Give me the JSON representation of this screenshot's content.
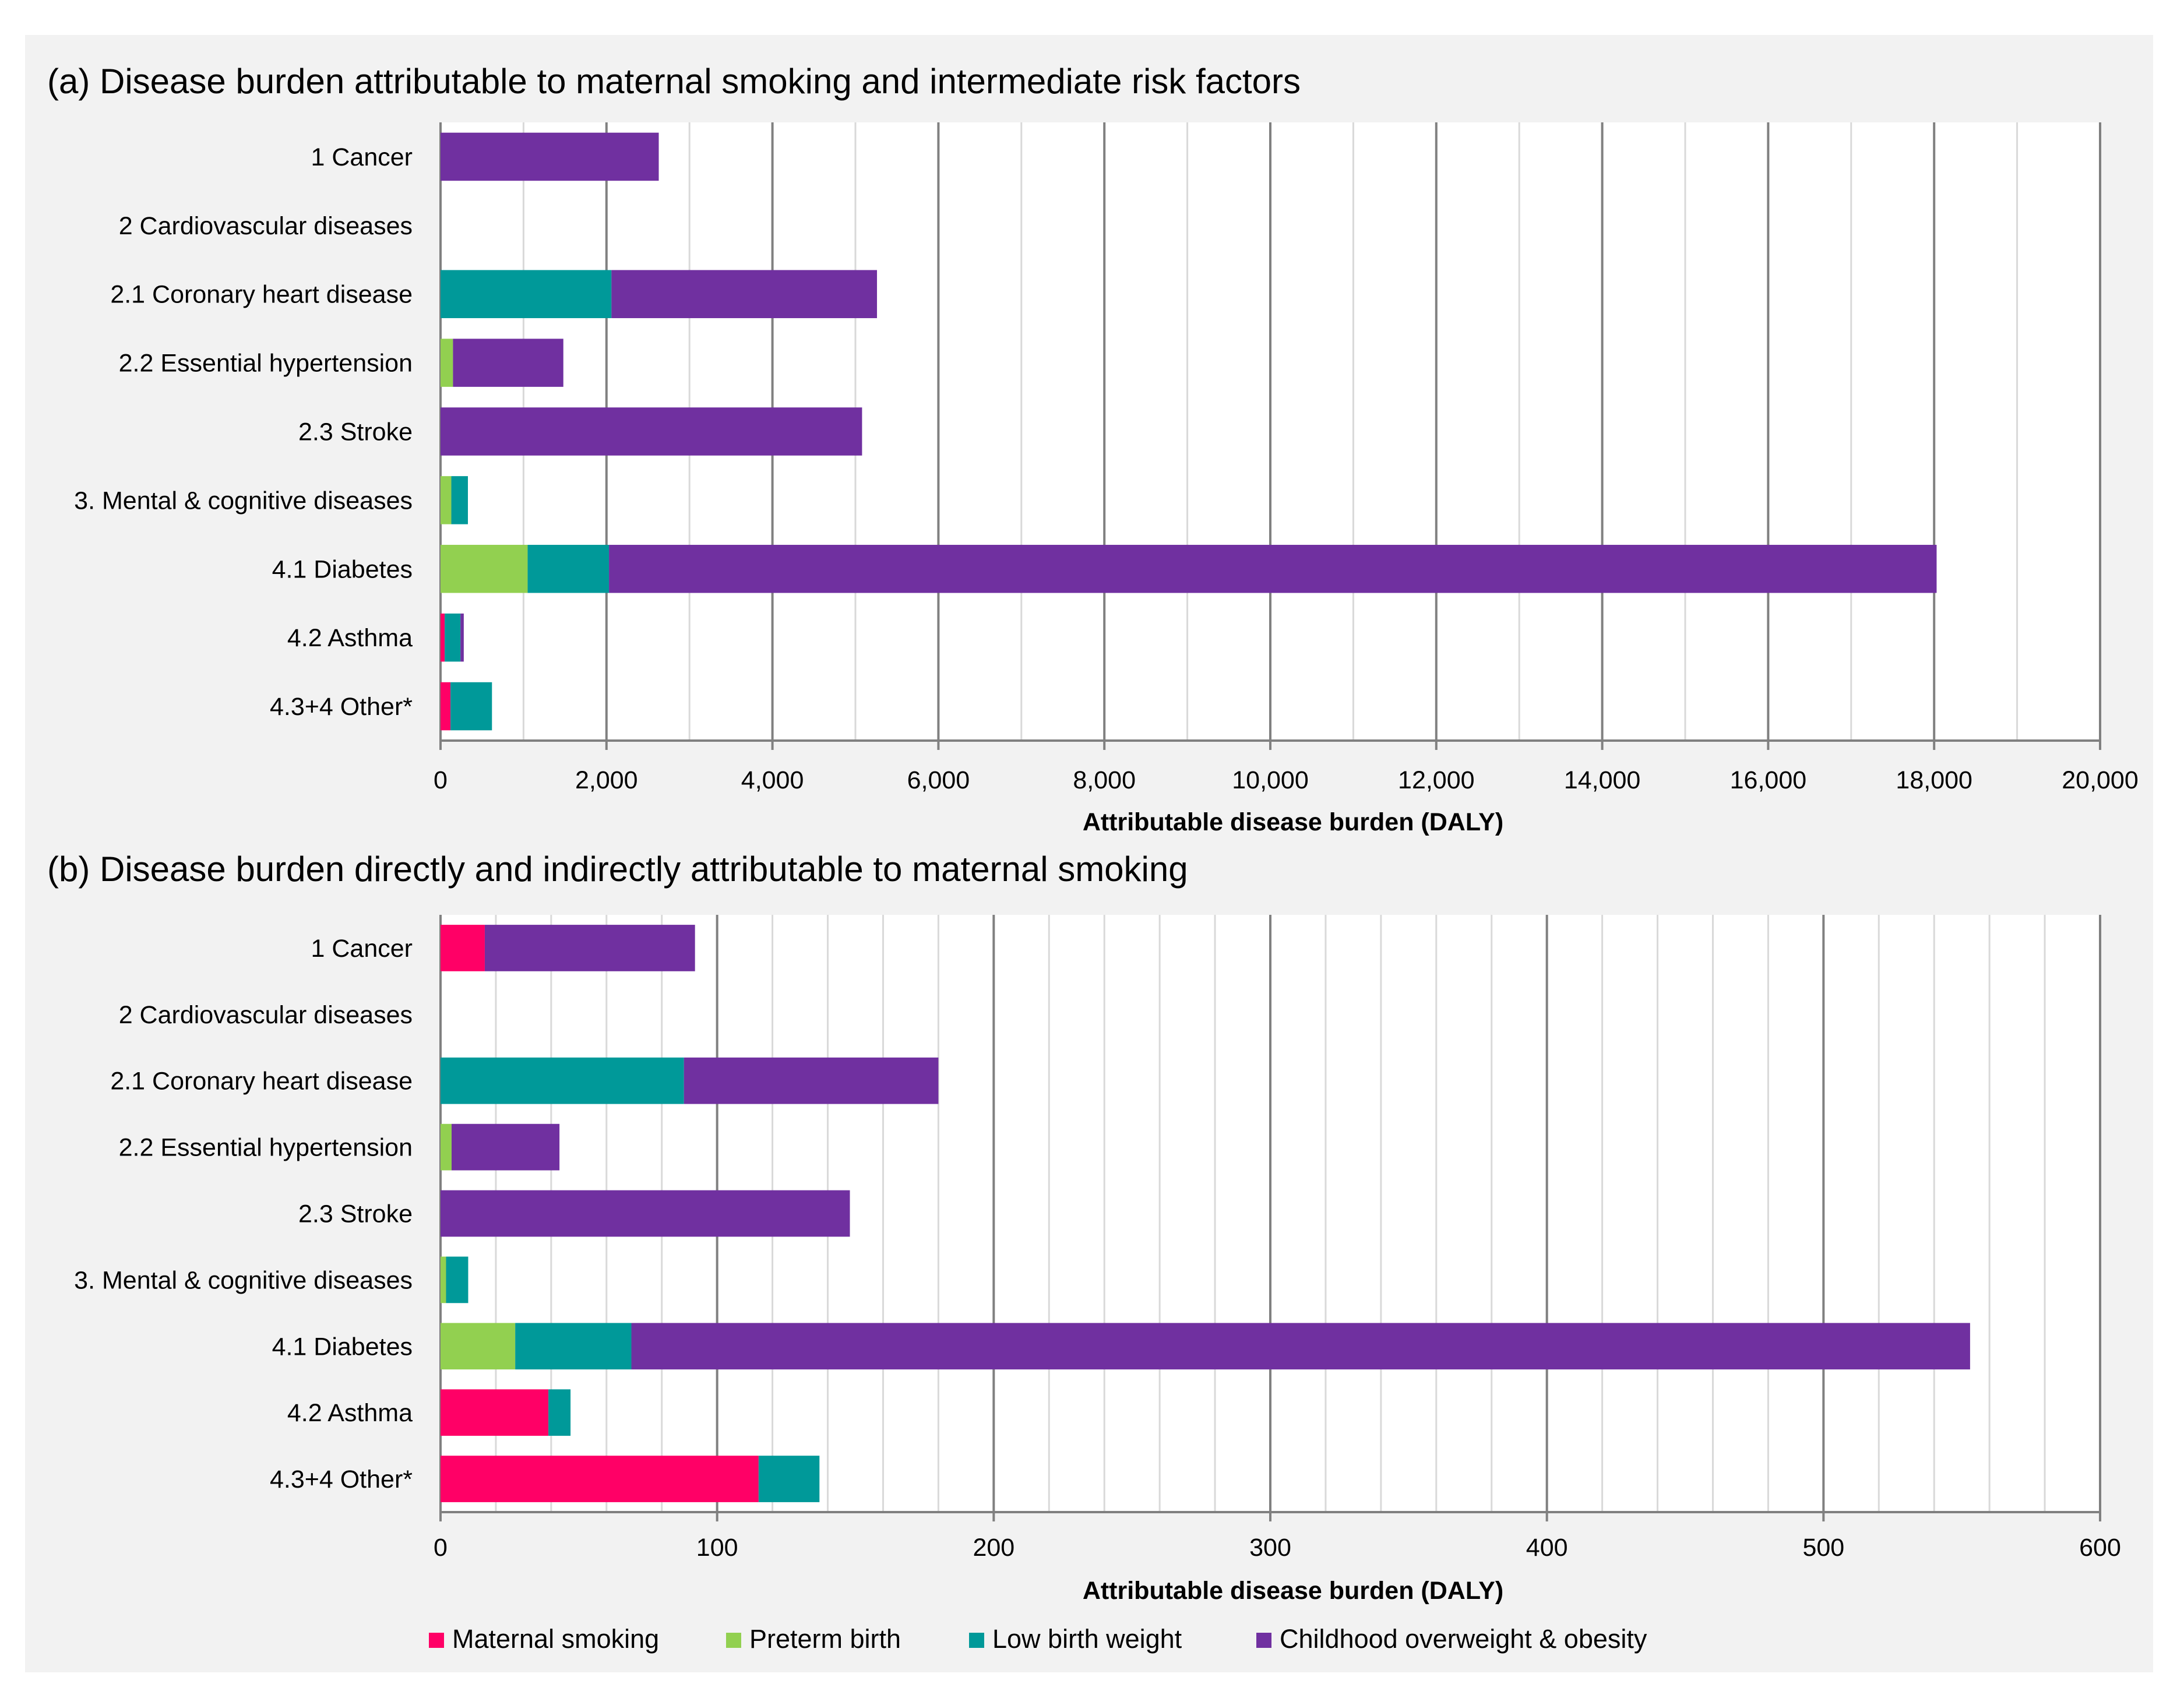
{
  "colors": {
    "maternal_smoking": "#ff0066",
    "preterm_birth": "#92d050",
    "low_birth_weight": "#009999",
    "childhood_overweight": "#7030a0",
    "background": "#f2f2f2",
    "major_grid": "#808080",
    "minor_grid": "#d9d9d9"
  },
  "legend": [
    {
      "key": "maternal_smoking",
      "label": "Maternal smoking"
    },
    {
      "key": "preterm_birth",
      "label": "Preterm birth"
    },
    {
      "key": "low_birth_weight",
      "label": "Low birth weight"
    },
    {
      "key": "childhood_overweight",
      "label": "Childhood overweight & obesity"
    }
  ],
  "chart_data": [
    {
      "type": "bar",
      "orientation": "horizontal",
      "stacked": true,
      "title": "(a) Disease burden attributable to maternal smoking and intermediate risk factors",
      "xlabel": "Attributable disease burden (DALY)",
      "xlim": [
        0,
        20000
      ],
      "major_ticks": [
        0,
        2000,
        4000,
        6000,
        8000,
        10000,
        12000,
        14000,
        16000,
        18000,
        20000
      ],
      "tick_labels": [
        "0",
        "2,000",
        "4,000",
        "6,000",
        "8,000",
        "10,000",
        "12,000",
        "14,000",
        "16,000",
        "18,000",
        "20,000"
      ],
      "minor_step": 1000,
      "categories": [
        "1 Cancer",
        "2 Cardiovascular diseases",
        "2.1 Coronary heart disease",
        "2.2 Essential hypertension",
        "2.3 Stroke",
        "3. Mental & cognitive diseases",
        "4.1 Diabetes",
        "4.2 Asthma",
        "4.3+4 Other*"
      ],
      "series": [
        {
          "name": "Maternal smoking",
          "key": "maternal_smoking",
          "values": [
            0,
            0,
            0,
            0,
            0,
            0,
            0,
            50,
            120
          ]
        },
        {
          "name": "Preterm birth",
          "key": "preterm_birth",
          "values": [
            0,
            0,
            0,
            150,
            0,
            130,
            1050,
            0,
            0
          ]
        },
        {
          "name": "Low birth weight",
          "key": "low_birth_weight",
          "values": [
            0,
            0,
            2060,
            0,
            0,
            200,
            980,
            190,
            500
          ]
        },
        {
          "name": "Childhood overweight & obesity",
          "key": "childhood_overweight",
          "values": [
            2630,
            0,
            3200,
            1330,
            5080,
            0,
            16000,
            40,
            0
          ]
        }
      ]
    },
    {
      "type": "bar",
      "orientation": "horizontal",
      "stacked": true,
      "title": "(b) Disease burden directly and indirectly attributable to maternal smoking",
      "xlabel": "Attributable disease burden (DALY)",
      "xlim": [
        0,
        600
      ],
      "major_ticks": [
        0,
        100,
        200,
        300,
        400,
        500,
        600
      ],
      "tick_labels": [
        "0",
        "100",
        "200",
        "300",
        "400",
        "500",
        "600"
      ],
      "minor_step": 20,
      "categories": [
        "1 Cancer",
        "2 Cardiovascular diseases",
        "2.1 Coronary heart disease",
        "2.2 Essential hypertension",
        "2.3 Stroke",
        "3. Mental & cognitive diseases",
        "4.1 Diabetes",
        "4.2 Asthma",
        "4.3+4 Other*"
      ],
      "series": [
        {
          "name": "Maternal smoking",
          "key": "maternal_smoking",
          "values": [
            16,
            0,
            0,
            0,
            0,
            0,
            0,
            39,
            115
          ]
        },
        {
          "name": "Preterm birth",
          "key": "preterm_birth",
          "values": [
            0,
            0,
            0,
            4,
            0,
            2,
            27,
            0,
            0
          ]
        },
        {
          "name": "Low birth weight",
          "key": "low_birth_weight",
          "values": [
            0,
            0,
            88,
            0,
            0,
            8,
            42,
            8,
            22
          ]
        },
        {
          "name": "Childhood overweight & obesity",
          "key": "childhood_overweight",
          "values": [
            76,
            0,
            92,
            39,
            148,
            0,
            484,
            0,
            0
          ]
        }
      ]
    }
  ]
}
